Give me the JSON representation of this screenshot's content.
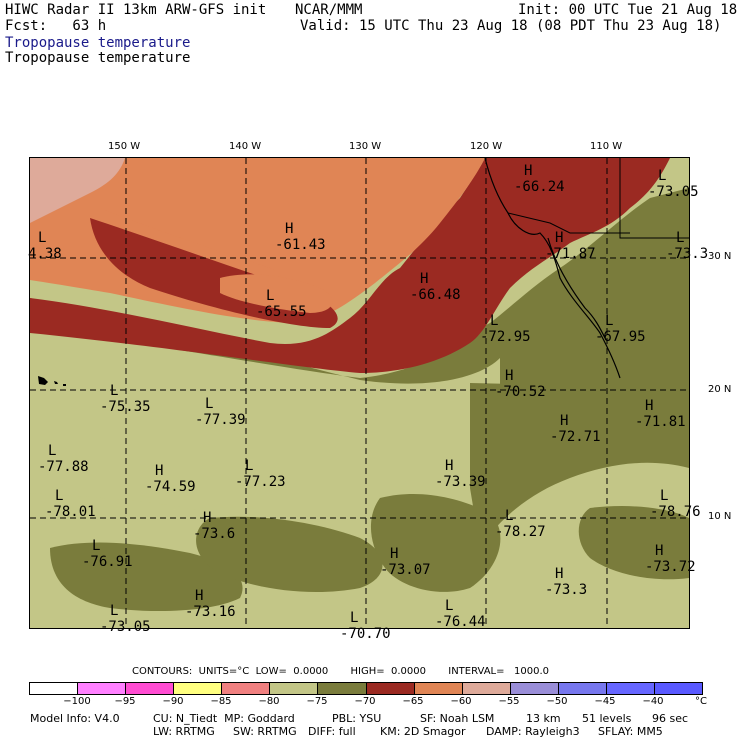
{
  "header": {
    "title_left": "HIWC Radar II 13km ARW-GFS init",
    "org": "NCAR/MMM",
    "init": "Init: 00 UTC Tue 21 Aug 18",
    "fcst": "Fcst:   63 h",
    "valid": "Valid: 15 UTC Thu 23 Aug 18 (08 PDT Thu 23 Aug 18)",
    "field1": "Tropopause temperature",
    "field2": "Tropopause temperature"
  },
  "map": {
    "lon_labels": [
      "150 W",
      "140 W",
      "130 W",
      "120 W",
      "110 W"
    ],
    "lat_labels": [
      "30 N",
      "20 N",
      "10 N"
    ],
    "extrema": [
      {
        "type": "L",
        "value": "4.38"
      },
      {
        "type": "H",
        "value": "-61.43"
      },
      {
        "type": "L",
        "value": "-65.55"
      },
      {
        "type": "H",
        "value": "-66.48"
      },
      {
        "type": "H",
        "value": "-66.24"
      },
      {
        "type": "L",
        "value": "-73.05"
      },
      {
        "type": "L",
        "value": "-73.3"
      },
      {
        "type": "H",
        "value": "-71.87"
      },
      {
        "type": "L",
        "value": "-72.95"
      },
      {
        "type": "L",
        "value": "-67.95"
      },
      {
        "type": "H",
        "value": "-70.52"
      },
      {
        "type": "L",
        "value": "-75.35"
      },
      {
        "type": "L",
        "value": "-77.39"
      },
      {
        "type": "L",
        "value": "-77.88"
      },
      {
        "type": "H",
        "value": "-74.59"
      },
      {
        "type": "L",
        "value": "-77.23"
      },
      {
        "type": "H",
        "value": "-72.71"
      },
      {
        "type": "H",
        "value": "-71.81"
      },
      {
        "type": "H",
        "value": "-73.39"
      },
      {
        "type": "L",
        "value": "-78.01"
      },
      {
        "type": "H",
        "value": "-73.6"
      },
      {
        "type": "L",
        "value": "-78.27"
      },
      {
        "type": "L",
        "value": "-78.76"
      },
      {
        "type": "L",
        "value": "-76.91"
      },
      {
        "type": "H",
        "value": "-73.07"
      },
      {
        "type": "H",
        "value": "-73.72"
      },
      {
        "type": "H",
        "value": "-73.3"
      },
      {
        "type": "H",
        "value": "-73.16"
      },
      {
        "type": "L",
        "value": "-76.44"
      },
      {
        "type": "L",
        "value": "-73.05"
      },
      {
        "type": "L",
        "value": "-70.70"
      }
    ]
  },
  "contours_line": "CONTOURS:  UNITS=°C  LOW=  0.0000       HIGH=  0.0000       INTERVAL=   1000.0",
  "colorbar": {
    "colors": [
      "#ffffff",
      "#ff80ff",
      "#ff4cd2",
      "#ffff80",
      "#f08080",
      "#c3c687",
      "#7a7c3c",
      "#9b2a22",
      "#e08555",
      "#deaa9a",
      "#9a8ed8",
      "#7777ee",
      "#6666ff",
      "#5959ff"
    ],
    "ticks": [
      "−100",
      "−95",
      "−90",
      "−85",
      "−80",
      "−75",
      "−70",
      "−65",
      "−60",
      "−55",
      "−50",
      "−45",
      "−40",
      "°C"
    ]
  },
  "footer": {
    "line1_a": "Model Info: V4.0",
    "line1_b": "CU: N_Tiedt  MP: Goddard",
    "line1_c": "PBL: YSU",
    "line1_d": "SF: Noah LSM",
    "line1_e": "13 km",
    "line1_f": "51 levels",
    "line1_g": "96 sec",
    "line2_a": "LW: RRTMG",
    "line2_b": "SW: RRTMG",
    "line2_c": "DIFF: full",
    "line2_d": "KM: 2D Smagor",
    "line2_e": "DAMP: Rayleigh3",
    "line2_f": "SFLAY: MM5"
  }
}
